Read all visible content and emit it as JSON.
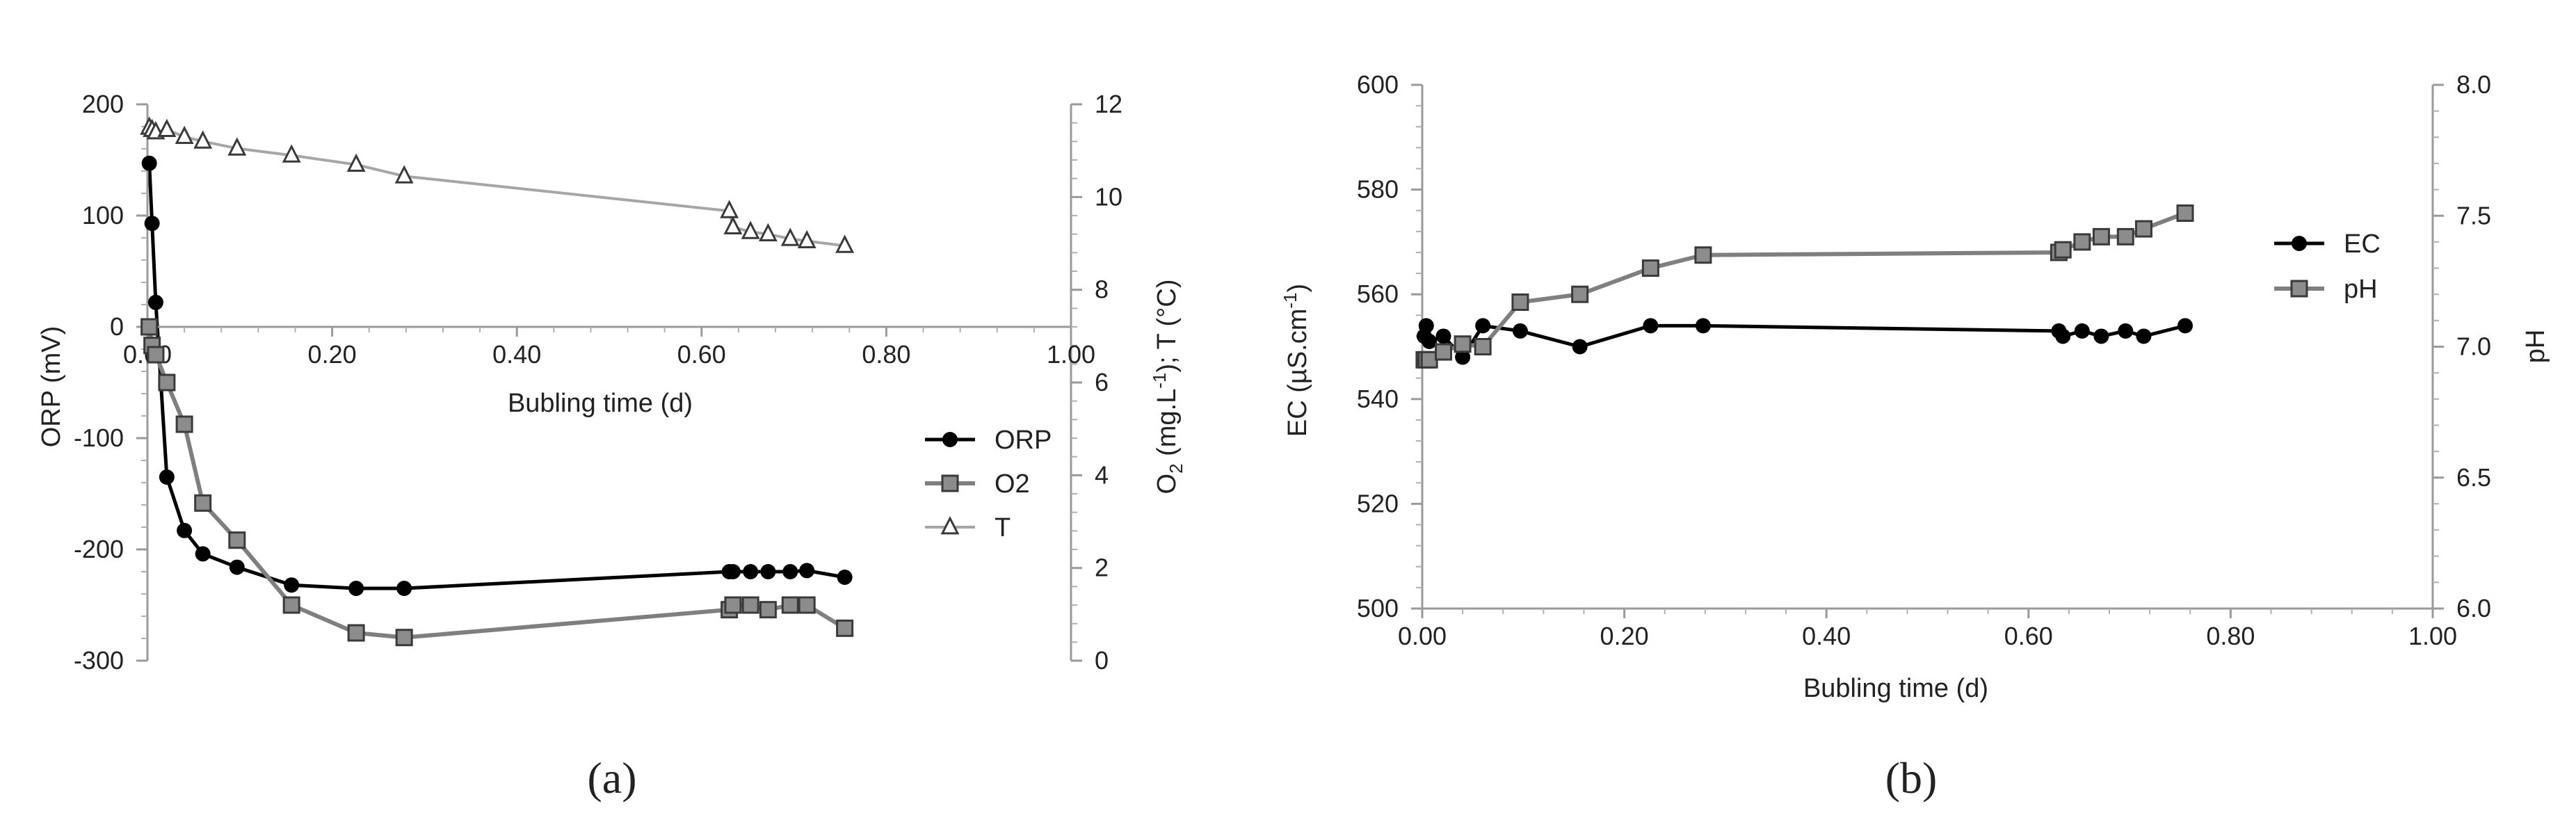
{
  "chart_data": [
    {
      "type": "line",
      "panel_label": "(a)",
      "title": "",
      "xlabel": "Bubling time (d)",
      "ylabel": "ORP (mV)",
      "ylabel_right": "O2 (mg.L-1); T (°C)",
      "xlim": [
        0,
        1
      ],
      "ylim": [
        -300,
        200
      ],
      "ylim_right": [
        0,
        12
      ],
      "x_ticks": [
        "0.00",
        "0.20",
        "0.40",
        "0.60",
        "0.80",
        "1.00"
      ],
      "y_ticks": [
        "-300",
        "-200",
        "-100",
        "0",
        "100",
        "200"
      ],
      "y_ticks_right": [
        "0",
        "2",
        "4",
        "6",
        "8",
        "10",
        "12"
      ],
      "legend_position": "right",
      "grid": false,
      "series": [
        {
          "name": "ORP",
          "axis": "left",
          "color": "#000000",
          "marker": "circle",
          "x": [
            0.002,
            0.005,
            0.009,
            0.021,
            0.04,
            0.06,
            0.097,
            0.156,
            0.226,
            0.278,
            0.63,
            0.634,
            0.653,
            0.672,
            0.696,
            0.714,
            0.755
          ],
          "y": [
            147,
            93,
            22,
            -135,
            -183,
            -204,
            -216,
            -232,
            -235,
            -235,
            -220,
            -220,
            -220,
            -220,
            -220,
            -219,
            -225
          ]
        },
        {
          "name": "O2",
          "axis": "right",
          "color": "#7f7f7f",
          "marker": "square",
          "x": [
            0.002,
            0.005,
            0.009,
            0.021,
            0.04,
            0.06,
            0.097,
            0.156,
            0.226,
            0.278,
            0.63,
            0.634,
            0.653,
            0.672,
            0.696,
            0.714,
            0.755
          ],
          "y": [
            7.2,
            6.8,
            6.6,
            6.0,
            5.1,
            3.4,
            2.6,
            1.2,
            0.6,
            0.5,
            1.1,
            1.2,
            1.2,
            1.1,
            1.2,
            1.2,
            0.7
          ]
        },
        {
          "name": "T",
          "axis": "right",
          "color": "#a6a6a6",
          "marker": "triangle",
          "x": [
            0.002,
            0.005,
            0.009,
            0.021,
            0.04,
            0.06,
            0.097,
            0.156,
            0.226,
            0.278,
            0.63,
            0.634,
            0.653,
            0.672,
            0.696,
            0.714,
            0.755
          ],
          "y": [
            11.5,
            11.45,
            11.4,
            11.45,
            11.3,
            11.2,
            11.05,
            10.9,
            10.7,
            10.45,
            9.7,
            9.35,
            9.25,
            9.2,
            9.1,
            9.05,
            8.95
          ]
        }
      ]
    },
    {
      "type": "line",
      "panel_label": "(b)",
      "title": "",
      "xlabel": "Bubling time (d)",
      "ylabel": "EC (µS.cm-1)",
      "ylabel_right": "pH",
      "xlim": [
        0,
        1
      ],
      "ylim": [
        500,
        600
      ],
      "ylim_right": [
        6.0,
        8.0
      ],
      "x_ticks": [
        "0.00",
        "0.20",
        "0.40",
        "0.60",
        "0.80",
        "1.00"
      ],
      "y_ticks": [
        "500",
        "520",
        "540",
        "560",
        "580",
        "600"
      ],
      "y_ticks_right": [
        "6.0",
        "6.5",
        "7.0",
        "7.5",
        "8.0"
      ],
      "legend_position": "right",
      "grid": false,
      "series": [
        {
          "name": "EC",
          "axis": "left",
          "color": "#000000",
          "marker": "circle",
          "x": [
            0.002,
            0.004,
            0.007,
            0.021,
            0.04,
            0.06,
            0.097,
            0.156,
            0.226,
            0.278,
            0.63,
            0.634,
            0.653,
            0.672,
            0.696,
            0.714,
            0.755
          ],
          "y": [
            552,
            554,
            551,
            552,
            548,
            554,
            553,
            550,
            554,
            554,
            553,
            552,
            553,
            552,
            553,
            552,
            554
          ]
        },
        {
          "name": "pH",
          "axis": "right",
          "color": "#7f7f7f",
          "marker": "square",
          "x": [
            0.002,
            0.004,
            0.007,
            0.021,
            0.04,
            0.06,
            0.097,
            0.156,
            0.226,
            0.278,
            0.63,
            0.634,
            0.653,
            0.672,
            0.696,
            0.714,
            0.755
          ],
          "y": [
            6.95,
            6.95,
            6.95,
            6.98,
            7.01,
            7.0,
            7.17,
            7.2,
            7.3,
            7.35,
            7.36,
            7.37,
            7.4,
            7.42,
            7.42,
            7.45,
            7.51
          ]
        }
      ]
    }
  ]
}
